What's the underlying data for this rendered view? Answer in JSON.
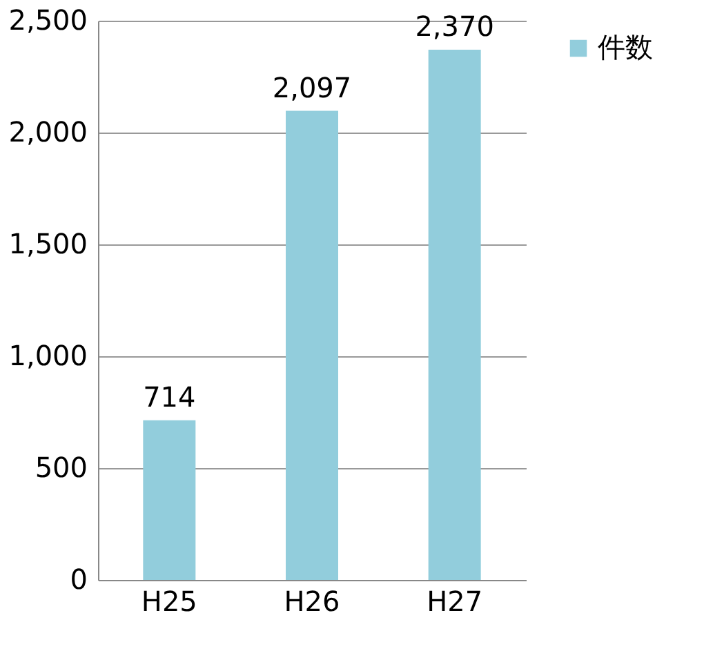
{
  "chart_data": {
    "type": "bar",
    "categories": [
      "H25",
      "H26",
      "H27"
    ],
    "series": [
      {
        "name": "件数",
        "color": "#92cddc",
        "values": [
          714,
          2097,
          2370
        ],
        "value_labels": [
          "714",
          "2,097",
          "2,370"
        ]
      }
    ],
    "ylim": [
      0,
      2500
    ],
    "yticks": [
      0,
      {
        "value": 500,
        "label": "500"
      },
      {
        "value": 1000,
        "label": "1,000"
      },
      {
        "value": 1500,
        "label": "1,500"
      },
      {
        "value": 2000,
        "label": "2,000"
      },
      {
        "value": 2500,
        "label": "2,500"
      }
    ],
    "grid": "y",
    "legend": "right"
  }
}
